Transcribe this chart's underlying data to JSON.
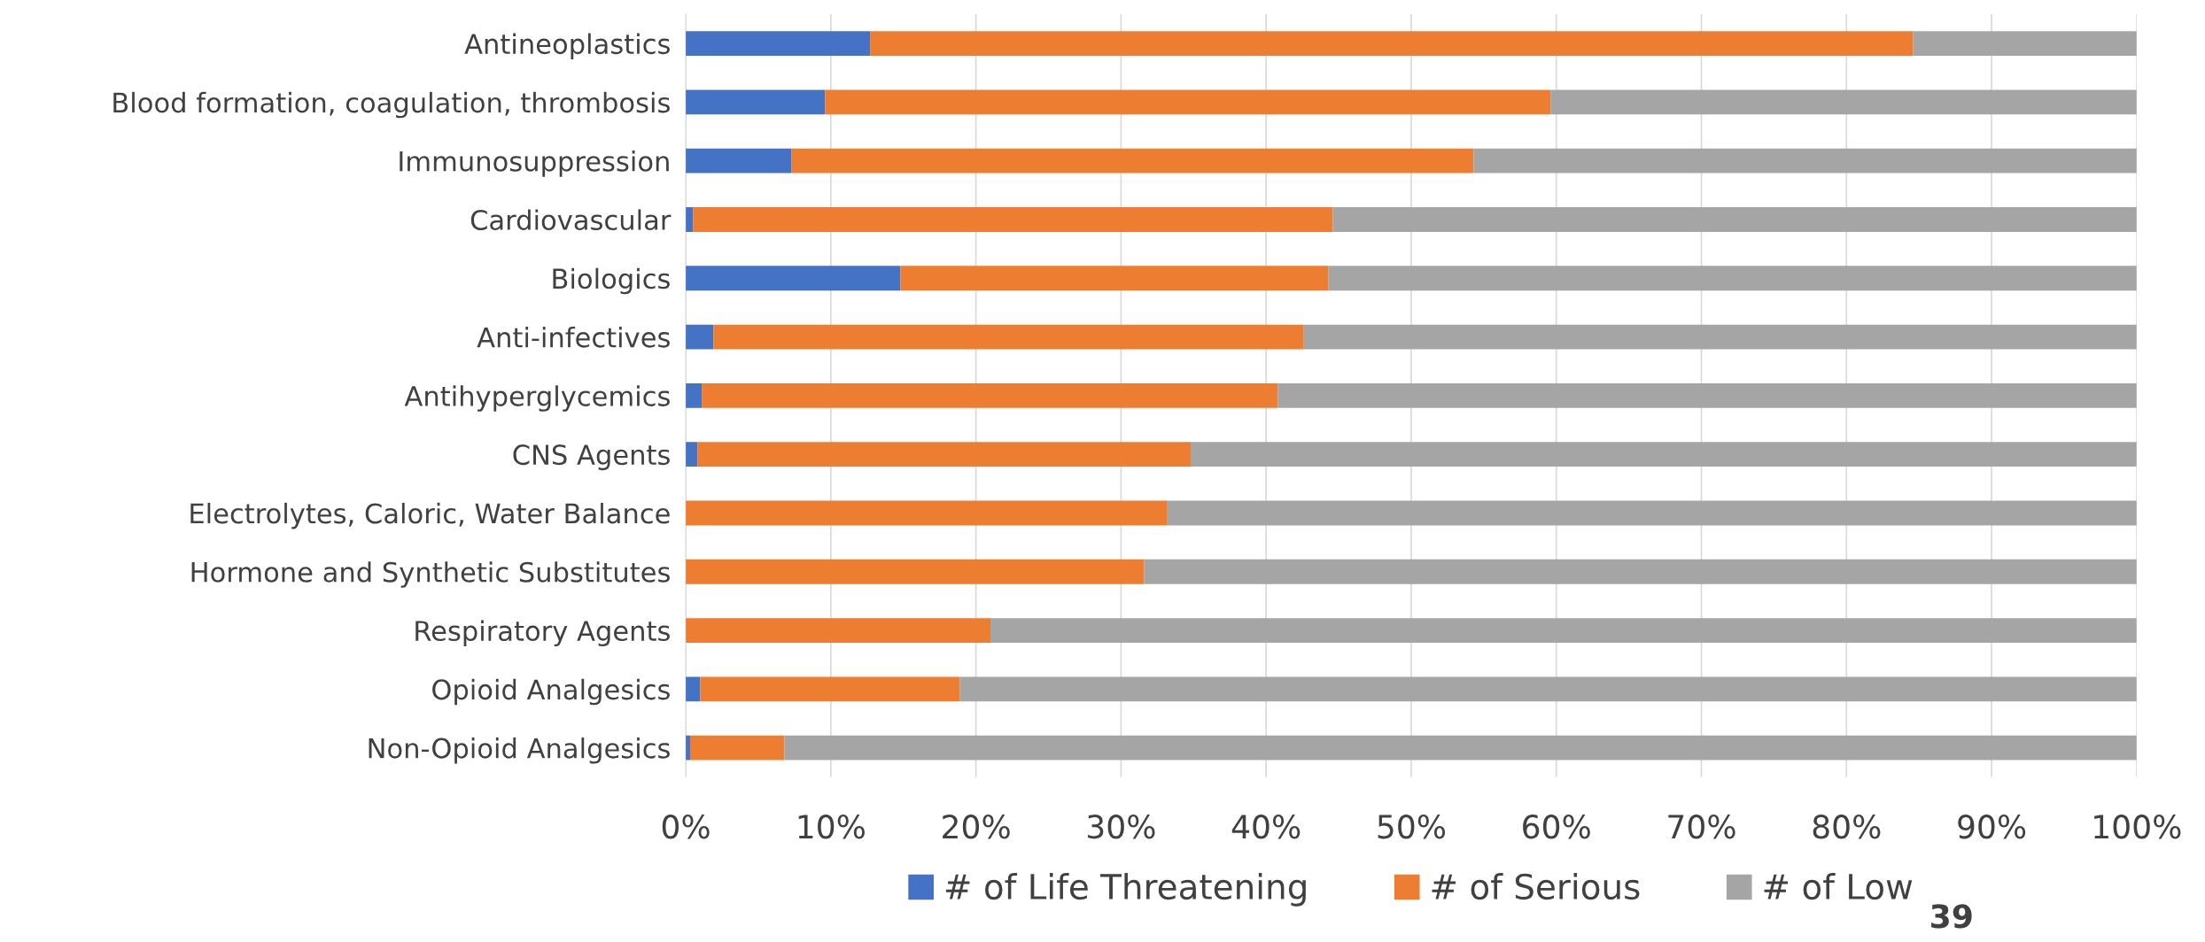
{
  "chart_data": {
    "type": "bar",
    "orientation": "horizontal",
    "stacked": true,
    "categories": [
      "Antineoplastics",
      "Blood formation, coagulation, thrombosis",
      "Immunosuppression",
      "Cardiovascular",
      "Biologics",
      "Anti-infectives",
      "Antihyperglycemics",
      "CNS Agents",
      "Electrolytes, Caloric, Water Balance",
      "Hormone and Synthetic Substitutes",
      "Respiratory Agents",
      "Opioid Analgesics",
      "Non-Opioid Analgesics"
    ],
    "series": [
      {
        "name": "# of Life Threatening",
        "color": "#4472c4",
        "values": [
          12.7,
          9.6,
          7.3,
          0.5,
          14.8,
          1.9,
          1.1,
          0.8,
          0,
          0,
          0,
          1.0,
          0.3
        ]
      },
      {
        "name": "# of Serious",
        "color": "#ed7d31",
        "values": [
          71.9,
          50.0,
          47.0,
          44.1,
          29.5,
          40.7,
          39.7,
          34.0,
          33.2,
          31.6,
          21.0,
          17.9,
          6.5
        ]
      },
      {
        "name": "# of Low",
        "color": "#a5a5a5",
        "values": [
          15.4,
          40.4,
          45.7,
          55.4,
          55.7,
          57.4,
          59.2,
          65.2,
          66.8,
          68.4,
          79.0,
          81.1,
          93.2
        ]
      }
    ],
    "xlim": [
      0,
      100
    ],
    "xticks": [
      {
        "value": 0,
        "label": "0%"
      },
      {
        "value": 10,
        "label": "10%"
      },
      {
        "value": 20,
        "label": "20%"
      },
      {
        "value": 30,
        "label": "30%"
      },
      {
        "value": 40,
        "label": "40%"
      },
      {
        "value": 50,
        "label": "50%"
      },
      {
        "value": 60,
        "label": "60%"
      },
      {
        "value": 70,
        "label": "70%"
      },
      {
        "value": 80,
        "label": "80%"
      },
      {
        "value": 90,
        "label": "90%"
      },
      {
        "value": 100,
        "label": "100%"
      }
    ],
    "grid": "x",
    "legend": "bottom",
    "annotations": [
      "39"
    ]
  }
}
